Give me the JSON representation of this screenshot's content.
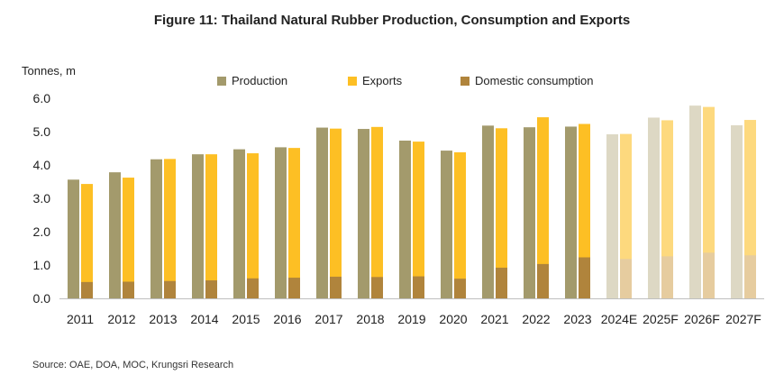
{
  "chart_data": {
    "type": "bar",
    "title": "Figure 11: Thailand Natural Rubber Production, Consumption and Exports",
    "ylabel": "Tonnes, m",
    "xlabel": "",
    "ylim": [
      0,
      6
    ],
    "yticks": [
      "0.0",
      "1.0",
      "2.0",
      "3.0",
      "4.0",
      "5.0",
      "6.0"
    ],
    "grid": false,
    "legend_position": "top",
    "categories": [
      "2011",
      "2012",
      "2013",
      "2014",
      "2015",
      "2016",
      "2017",
      "2018",
      "2019",
      "2020",
      "2021",
      "2022",
      "2023",
      "2024E",
      "2025F",
      "2026F",
      "2027F"
    ],
    "forecast_categories": [
      "2024E",
      "2025F",
      "2026F",
      "2027F"
    ],
    "series": [
      {
        "name": "Production",
        "color": "#a39a6c",
        "values": [
          3.56,
          3.78,
          4.17,
          4.32,
          4.47,
          4.53,
          5.12,
          5.08,
          4.73,
          4.43,
          5.18,
          5.13,
          5.15,
          4.92,
          5.42,
          5.78,
          5.19
        ]
      },
      {
        "name": "Exports",
        "color": "#fdbf24",
        "values": [
          3.43,
          3.62,
          4.18,
          4.32,
          4.35,
          4.51,
          5.09,
          5.14,
          4.7,
          4.38,
          5.1,
          5.43,
          5.23,
          4.93,
          5.34,
          5.74,
          5.35
        ]
      },
      {
        "name": "Domestic consumption",
        "color": "#b0843c",
        "values": [
          0.49,
          0.5,
          0.52,
          0.54,
          0.6,
          0.62,
          0.65,
          0.64,
          0.66,
          0.59,
          0.92,
          1.03,
          1.23,
          1.18,
          1.26,
          1.37,
          1.29
        ]
      }
    ],
    "forecast_colors": {
      "Production": "#ddd8c4",
      "Exports": "#fdd97e",
      "Domestic consumption": "#e6cc9f"
    }
  },
  "source_text": "Source: OAE, DOA, MOC, Krungsri Research"
}
